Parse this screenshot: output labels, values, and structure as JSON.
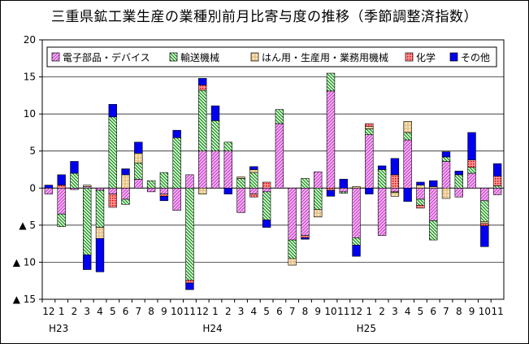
{
  "chart_data": {
    "type": "bar",
    "stacked": true,
    "title": "三重県鉱工業生産の業種別前月比寄与度の推移（季節調整済指数）",
    "xlabel": "",
    "ylabel": "",
    "ylim": [
      -15,
      20
    ],
    "yticks": [
      {
        "value": 20,
        "label": "20"
      },
      {
        "value": 15,
        "label": "15"
      },
      {
        "value": 10,
        "label": "10"
      },
      {
        "value": 5,
        "label": "5"
      },
      {
        "value": 0,
        "label": "0"
      },
      {
        "value": -5,
        "label": "▲ 5"
      },
      {
        "value": -10,
        "label": "▲ 10"
      },
      {
        "value": -15,
        "label": "▲ 15"
      }
    ],
    "grid": true,
    "legend_position": "top",
    "categories": [
      "12",
      "1",
      "2",
      "3",
      "4",
      "5",
      "6",
      "7",
      "8",
      "9",
      "10",
      "11",
      "12",
      "1",
      "2",
      "3",
      "4",
      "5",
      "6",
      "7",
      "8",
      "9",
      "10",
      "11",
      "12",
      "1",
      "2",
      "3",
      "4",
      "5",
      "6",
      "7",
      "8",
      "9",
      "10",
      "11"
    ],
    "year_labels": [
      {
        "index": 0,
        "label": "H23"
      },
      {
        "index": 12,
        "label": "H24"
      },
      {
        "index": 24,
        "label": "H25"
      }
    ],
    "series": [
      {
        "name": "電子部品・デバイス",
        "color": "#ee88ee",
        "pattern": "diag-pink",
        "values": [
          -0.8,
          -3.5,
          -0.2,
          0.2,
          -0.3,
          -0.8,
          -1.5,
          1.2,
          -0.5,
          -0.8,
          -3.0,
          1.8,
          5.0,
          5.0,
          5.0,
          -3.3,
          -0.8,
          -0.5,
          8.7,
          -7.0,
          -6.4,
          2.2,
          13.1,
          -0.5,
          -6.7,
          7.2,
          -6.4,
          -0.5,
          6.5,
          -1.5,
          -4.4,
          3.6,
          -1.2,
          2.0,
          -1.7,
          -0.9
        ]
      },
      {
        "name": "輸送機械",
        "color": "#22aa22",
        "pattern": "diag-green",
        "values": [
          0.0,
          -1.7,
          2.0,
          -9.0,
          -5.0,
          9.6,
          -0.7,
          2.2,
          1.0,
          2.1,
          6.8,
          -12.4,
          8.2,
          4.1,
          1.2,
          1.3,
          2.1,
          -3.8,
          1.9,
          -2.5,
          1.3,
          -2.9,
          2.4,
          -0.2,
          -1.0,
          0.8,
          2.5,
          -0.1,
          1.0,
          -0.8,
          -2.6,
          0.6,
          1.8,
          0.8,
          -2.8,
          0.3
        ]
      },
      {
        "name": "はん用・生産用・業務用機械",
        "color": "#f5d9a5",
        "pattern": "cross-tan",
        "values": [
          0.0,
          0.0,
          0.0,
          0.2,
          -1.5,
          0.0,
          1.8,
          1.3,
          0.0,
          0.0,
          0.0,
          0.0,
          -0.8,
          0.0,
          0.0,
          0.2,
          0.4,
          0.0,
          0.0,
          -0.9,
          0.0,
          -1.0,
          0.0,
          0.0,
          0.2,
          0.3,
          0.0,
          -0.5,
          1.5,
          0.4,
          0.2,
          -1.4,
          0.0,
          0.0,
          -0.3,
          0.0
        ]
      },
      {
        "name": "化学",
        "color": "#ee3333",
        "pattern": "dots-red",
        "values": [
          0.0,
          0.4,
          0.0,
          0.0,
          0.0,
          -1.8,
          0.0,
          0.0,
          0.0,
          -0.3,
          0.0,
          -0.4,
          0.7,
          0.0,
          0.0,
          0.0,
          -0.4,
          0.8,
          0.0,
          0.0,
          -0.3,
          0.0,
          -0.3,
          0.0,
          0.0,
          0.4,
          0.0,
          1.8,
          0.0,
          -0.4,
          0.0,
          0.0,
          0.0,
          1.0,
          -0.3,
          1.3
        ]
      },
      {
        "name": "その他",
        "color": "#0000ee",
        "pattern": "solid-blue",
        "values": [
          0.4,
          1.4,
          1.6,
          -2.0,
          -4.5,
          1.7,
          0.8,
          1.5,
          0.0,
          -0.6,
          1.0,
          -0.9,
          0.9,
          2.0,
          -0.8,
          0.0,
          0.4,
          -1.0,
          0.0,
          0.0,
          -0.2,
          0.0,
          -0.8,
          1.2,
          -1.5,
          -0.8,
          0.5,
          2.2,
          -1.8,
          0.4,
          0.8,
          0.7,
          0.5,
          3.7,
          -2.8,
          1.7
        ]
      }
    ]
  }
}
